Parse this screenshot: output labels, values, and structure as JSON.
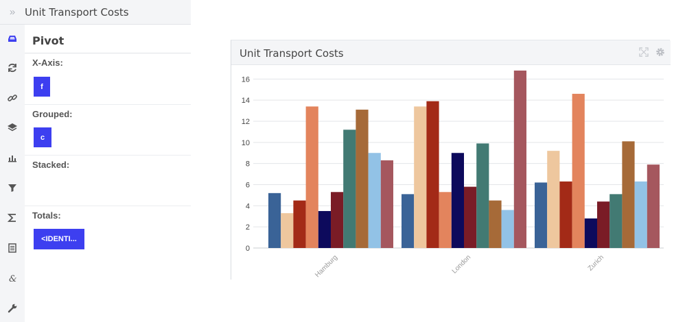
{
  "app": {
    "title": "Unit Transport Costs"
  },
  "sidebar_icons": [
    "inbox-tray-icon",
    "refresh-icon",
    "link-icon",
    "layers-icon",
    "bar-chart-icon",
    "filter-icon",
    "sigma-icon",
    "document-icon",
    "ampersand-icon",
    "wrench-icon"
  ],
  "pivot": {
    "title": "Pivot",
    "x_axis": {
      "label": "X-Axis:",
      "chip": "f"
    },
    "grouped": {
      "label": "Grouped:",
      "chip": "c"
    },
    "stacked": {
      "label": "Stacked:"
    },
    "totals": {
      "label": "Totals:",
      "chip": "<IDENTI..."
    }
  },
  "card": {
    "title": "Unit Transport Costs"
  },
  "colors": {
    "accent": "#3d3ff0",
    "series": [
      "#3a6397",
      "#eec79e",
      "#a32a17",
      "#e3845d",
      "#0d0a5c",
      "#7a1c26",
      "#427a73",
      "#a66a38",
      "#92c2e6",
      "#a5575e"
    ]
  },
  "chart_data": {
    "type": "bar",
    "title": "Unit Transport Costs",
    "xlabel": "",
    "ylabel": "",
    "categories": [
      "Hamburg",
      "London",
      "Zurich"
    ],
    "series": [
      {
        "values": [
          5.2,
          5.1,
          6.2
        ]
      },
      {
        "values": [
          3.3,
          13.4,
          9.2
        ]
      },
      {
        "values": [
          4.5,
          13.9,
          6.3
        ]
      },
      {
        "values": [
          13.4,
          5.3,
          14.6
        ]
      },
      {
        "values": [
          3.5,
          9.0,
          2.8
        ]
      },
      {
        "values": [
          5.3,
          5.8,
          4.4
        ]
      },
      {
        "values": [
          11.2,
          9.9,
          5.1
        ]
      },
      {
        "values": [
          13.1,
          4.5,
          10.1
        ]
      },
      {
        "values": [
          9.0,
          3.6,
          6.3
        ]
      },
      {
        "values": [
          8.3,
          16.8,
          7.9
        ]
      }
    ],
    "yticks": [
      0,
      2,
      4,
      6,
      8,
      10,
      12,
      14,
      16
    ],
    "ylim": [
      0,
      16.8
    ],
    "grid": true,
    "legend": "none"
  }
}
